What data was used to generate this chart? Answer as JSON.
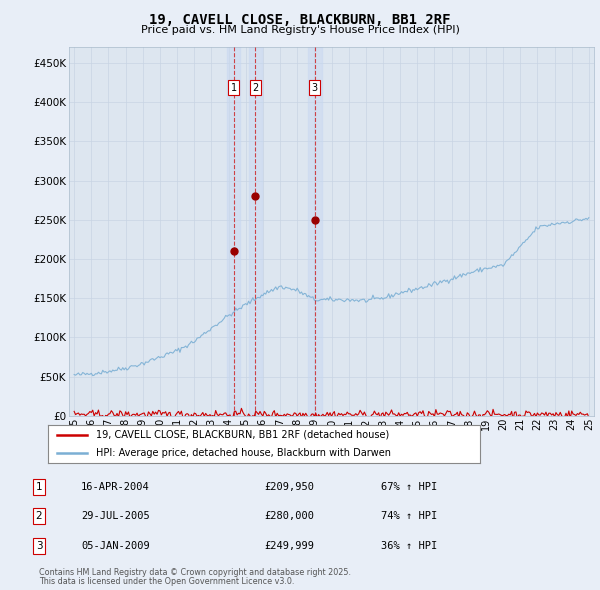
{
  "title": "19, CAVELL CLOSE, BLACKBURN, BB1 2RF",
  "subtitle": "Price paid vs. HM Land Registry's House Price Index (HPI)",
  "ylabel_ticks": [
    "£0",
    "£50K",
    "£100K",
    "£150K",
    "£200K",
    "£250K",
    "£300K",
    "£350K",
    "£400K",
    "£450K"
  ],
  "ytick_values": [
    0,
    50000,
    100000,
    150000,
    200000,
    250000,
    300000,
    350000,
    400000,
    450000
  ],
  "ylim": [
    0,
    470000
  ],
  "xlim_start": 1994.7,
  "xlim_end": 2025.3,
  "background_color": "#e8eef7",
  "plot_bg_color": "#dde6f0",
  "grid_color": "#c8d4e4",
  "legend_label_red": "19, CAVELL CLOSE, BLACKBURN, BB1 2RF (detached house)",
  "legend_label_blue": "HPI: Average price, detached house, Blackburn with Darwen",
  "transactions": [
    {
      "num": 1,
      "date": "16-APR-2004",
      "price": 209950,
      "pct": "67%",
      "dir": "↑",
      "year": 2004.29
    },
    {
      "num": 2,
      "date": "29-JUL-2005",
      "price": 280000,
      "pct": "74%",
      "dir": "↑",
      "year": 2005.57
    },
    {
      "num": 3,
      "date": "05-JAN-2009",
      "price": 249999,
      "pct": "36%",
      "dir": "↑",
      "year": 2009.02
    }
  ],
  "footer_line1": "Contains HM Land Registry data © Crown copyright and database right 2025.",
  "footer_line2": "This data is licensed under the Open Government Licence v3.0.",
  "red_line_color": "#cc0000",
  "blue_line_color": "#7bafd4",
  "transaction_dot_color": "#990000",
  "shade_color": "#c8d8f0"
}
